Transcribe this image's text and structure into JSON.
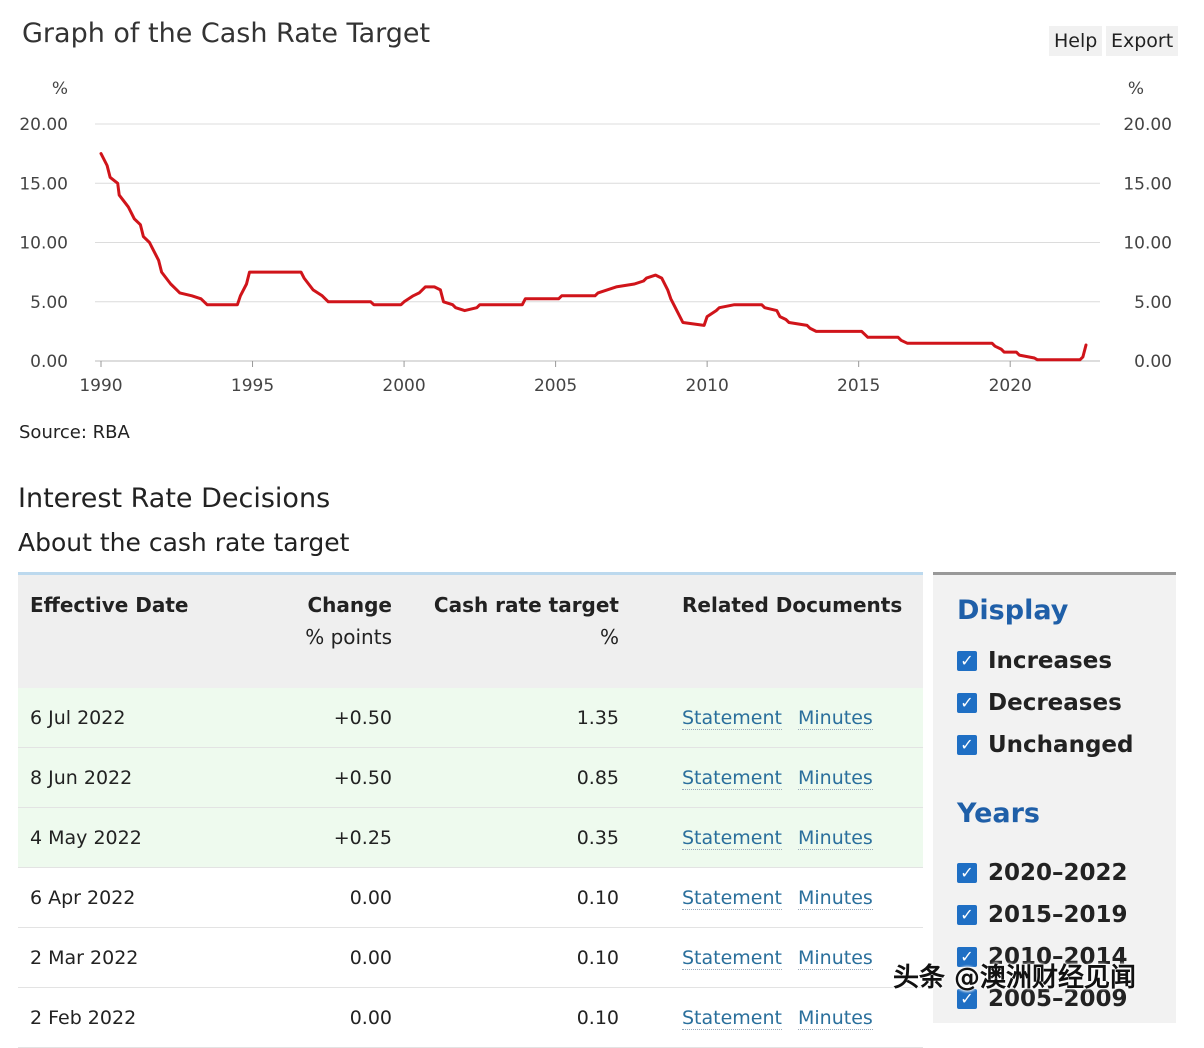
{
  "chart_title": "Graph of the Cash Rate Target",
  "toolbar": {
    "help": "Help",
    "export": "Export"
  },
  "source": "Source: RBA",
  "section": {
    "title": "Interest Rate Decisions",
    "link": "About the cash rate target"
  },
  "table": {
    "headers": [
      {
        "main": "Effective Date",
        "sub": ""
      },
      {
        "main": "Change",
        "sub": "% points"
      },
      {
        "main": "Cash rate target",
        "sub": "%"
      },
      {
        "main": "Related Documents",
        "sub": ""
      }
    ],
    "rows": [
      {
        "date": "6 Jul 2022",
        "change": "+0.50",
        "target": "1.35",
        "docs": [
          "Statement",
          "Minutes"
        ],
        "type": "increase"
      },
      {
        "date": "8 Jun 2022",
        "change": "+0.50",
        "target": "0.85",
        "docs": [
          "Statement",
          "Minutes"
        ],
        "type": "increase"
      },
      {
        "date": "4 May 2022",
        "change": "+0.25",
        "target": "0.35",
        "docs": [
          "Statement",
          "Minutes"
        ],
        "type": "increase"
      },
      {
        "date": "6 Apr 2022",
        "change": "0.00",
        "target": "0.10",
        "docs": [
          "Statement",
          "Minutes"
        ],
        "type": "unchanged"
      },
      {
        "date": "2 Mar 2022",
        "change": "0.00",
        "target": "0.10",
        "docs": [
          "Statement",
          "Minutes"
        ],
        "type": "unchanged"
      },
      {
        "date": "2 Feb 2022",
        "change": "0.00",
        "target": "0.10",
        "docs": [
          "Statement",
          "Minutes"
        ],
        "type": "unchanged"
      }
    ]
  },
  "display": {
    "title": "Display",
    "options": [
      {
        "label": "Increases",
        "checked": true
      },
      {
        "label": "Decreases",
        "checked": true
      },
      {
        "label": "Unchanged",
        "checked": true
      }
    ]
  },
  "years": {
    "title": "Years",
    "options": [
      {
        "label": "2020–2022",
        "checked": true
      },
      {
        "label": "2015–2019",
        "checked": true
      },
      {
        "label": "2010–2014",
        "checked": true
      },
      {
        "label": "2005–2009",
        "checked": true
      }
    ]
  },
  "watermark": "头条 @澳洲财经见闻",
  "colors": {
    "line": "#d0141a",
    "link": "#2a6f9c",
    "panel_title": "#1f5fa8",
    "checkbox": "#1f6fc4",
    "increase_row": "#eefaee"
  },
  "chart_data": {
    "type": "line",
    "title": "Graph of the Cash Rate Target",
    "ylabel_left": "%",
    "ylabel_right": "%",
    "xlim": [
      1990,
      2022.6
    ],
    "ylim": [
      0,
      20
    ],
    "x_ticks": [
      "1990",
      "1995",
      "2000",
      "2005",
      "2010",
      "2015",
      "2020"
    ],
    "y_ticks": [
      "0.00",
      "5.00",
      "10.00",
      "15.00",
      "20.00"
    ],
    "grid": true,
    "series": [
      {
        "name": "",
        "color": "#d0141a",
        "x": [
          1990.0,
          1990.2,
          1990.3,
          1990.55,
          1990.6,
          1990.9,
          1991.1,
          1991.3,
          1991.4,
          1991.6,
          1991.7,
          1991.9,
          1992.0,
          1992.3,
          1992.5,
          1992.6,
          1993.0,
          1993.3,
          1993.5,
          1994.5,
          1994.6,
          1994.8,
          1994.9,
          1996.6,
          1996.7,
          1997.0,
          1997.3,
          1997.5,
          1997.8,
          1998.9,
          1999.0,
          1999.9,
          2000.0,
          2000.3,
          2000.5,
          2000.7,
          2001.0,
          2001.2,
          2001.3,
          2001.6,
          2001.7,
          2002.0,
          2002.4,
          2002.5,
          2003.9,
          2004.0,
          2005.1,
          2005.2,
          2006.3,
          2006.4,
          2006.7,
          2007.0,
          2007.6,
          2007.9,
          2008.0,
          2008.3,
          2008.5,
          2008.7,
          2008.8,
          2009.0,
          2009.2,
          2009.9,
          2010.0,
          2010.3,
          2010.4,
          2010.9,
          2011.0,
          2011.8,
          2011.9,
          2012.3,
          2012.4,
          2012.6,
          2012.7,
          2013.3,
          2013.4,
          2013.6,
          2013.7,
          2015.1,
          2015.2,
          2015.3,
          2015.4,
          2016.3,
          2016.4,
          2016.6,
          2016.7,
          2019.4,
          2019.5,
          2019.7,
          2019.8,
          2020.2,
          2020.3,
          2020.8,
          2020.9,
          2022.3,
          2022.4,
          2022.5
        ],
        "values": [
          17.5,
          16.5,
          15.5,
          15.0,
          14.0,
          13.0,
          12.0,
          11.5,
          10.5,
          10.0,
          9.5,
          8.5,
          7.5,
          6.5,
          6.0,
          5.75,
          5.5,
          5.25,
          4.75,
          4.75,
          5.5,
          6.5,
          7.5,
          7.5,
          7.0,
          6.0,
          5.5,
          5.0,
          5.0,
          5.0,
          4.75,
          4.75,
          5.0,
          5.5,
          5.75,
          6.25,
          6.25,
          6.0,
          5.0,
          4.75,
          4.5,
          4.25,
          4.5,
          4.75,
          4.75,
          5.25,
          5.25,
          5.5,
          5.5,
          5.75,
          6.0,
          6.25,
          6.5,
          6.75,
          7.0,
          7.25,
          7.0,
          6.0,
          5.25,
          4.25,
          3.25,
          3.0,
          3.75,
          4.25,
          4.5,
          4.75,
          4.75,
          4.75,
          4.5,
          4.25,
          3.75,
          3.5,
          3.25,
          3.0,
          2.75,
          2.5,
          2.5,
          2.5,
          2.25,
          2.0,
          2.0,
          2.0,
          1.75,
          1.5,
          1.5,
          1.5,
          1.25,
          1.0,
          0.75,
          0.75,
          0.5,
          0.25,
          0.1,
          0.1,
          0.35,
          1.35
        ]
      }
    ]
  }
}
